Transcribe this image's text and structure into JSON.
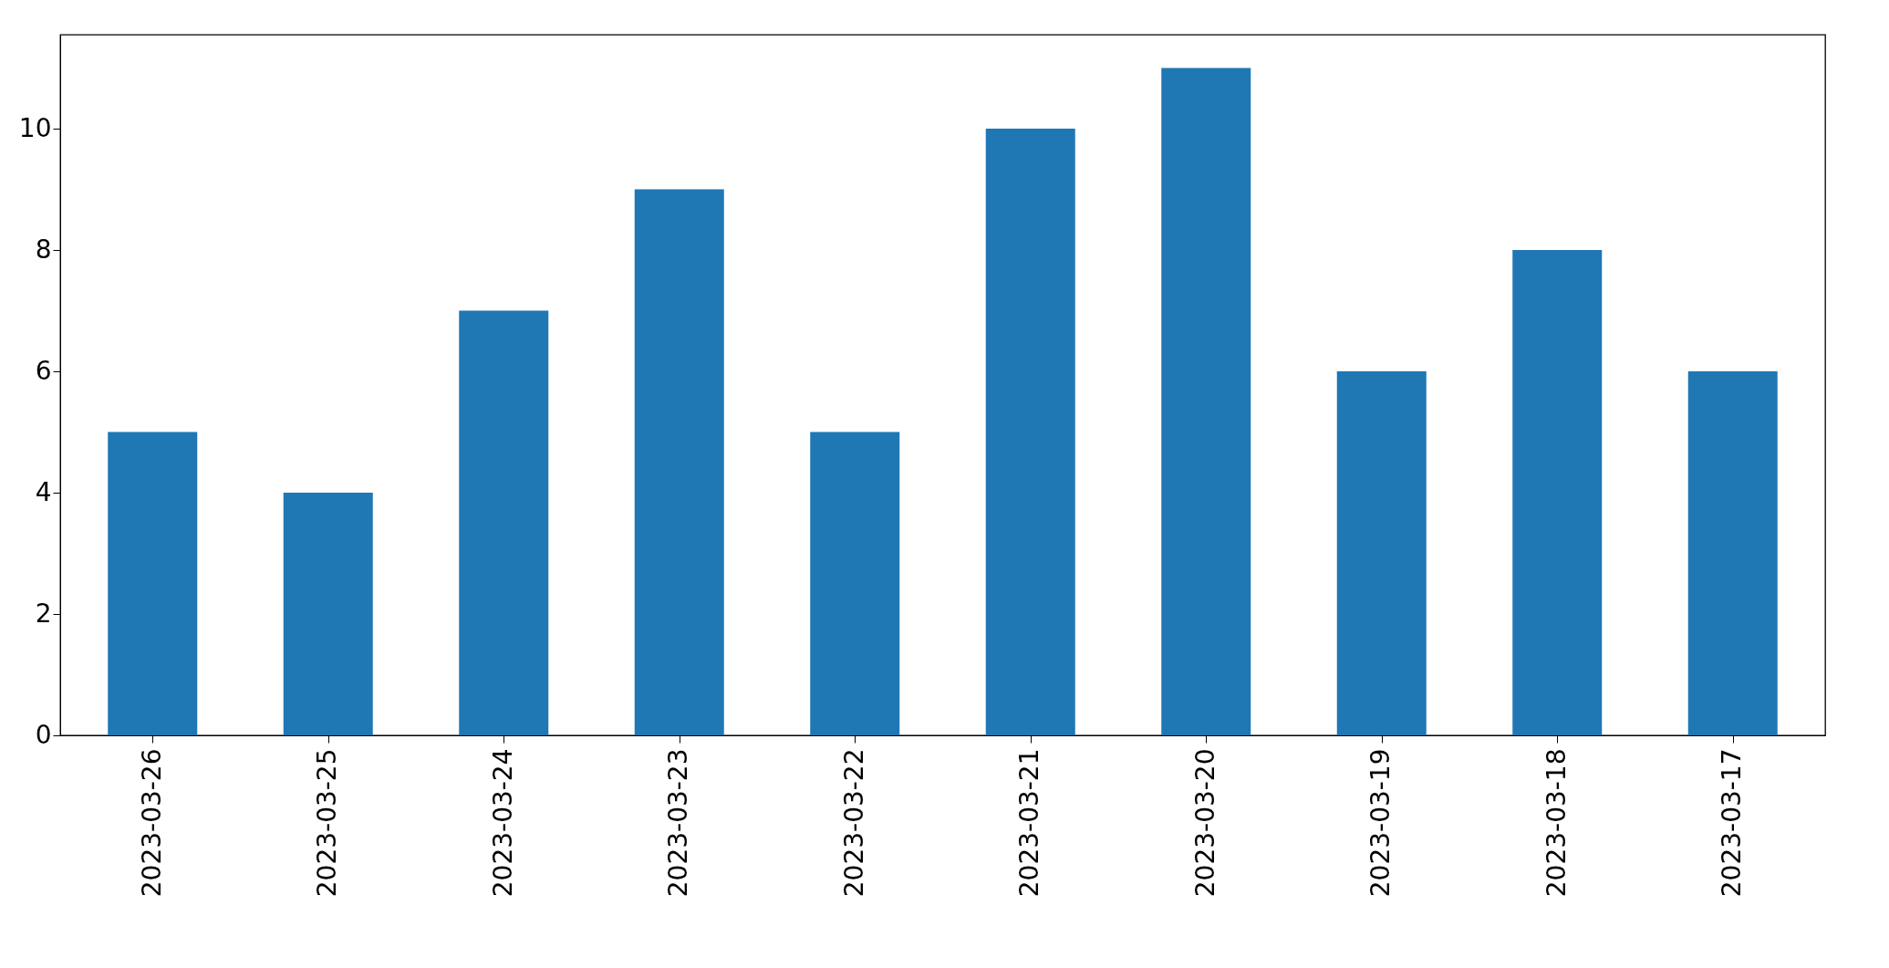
{
  "chart_data": {
    "type": "bar",
    "categories": [
      "2023-03-26",
      "2023-03-25",
      "2023-03-24",
      "2023-03-23",
      "2023-03-22",
      "2023-03-21",
      "2023-03-20",
      "2023-03-19",
      "2023-03-18",
      "2023-03-17"
    ],
    "values": [
      5,
      4,
      7,
      9,
      5,
      10,
      11,
      6,
      8,
      6
    ],
    "color": "#1f77b4",
    "ylim": [
      0,
      11.55
    ],
    "yticks": [
      0,
      2,
      4,
      6,
      8,
      10
    ],
    "grid": false
  }
}
